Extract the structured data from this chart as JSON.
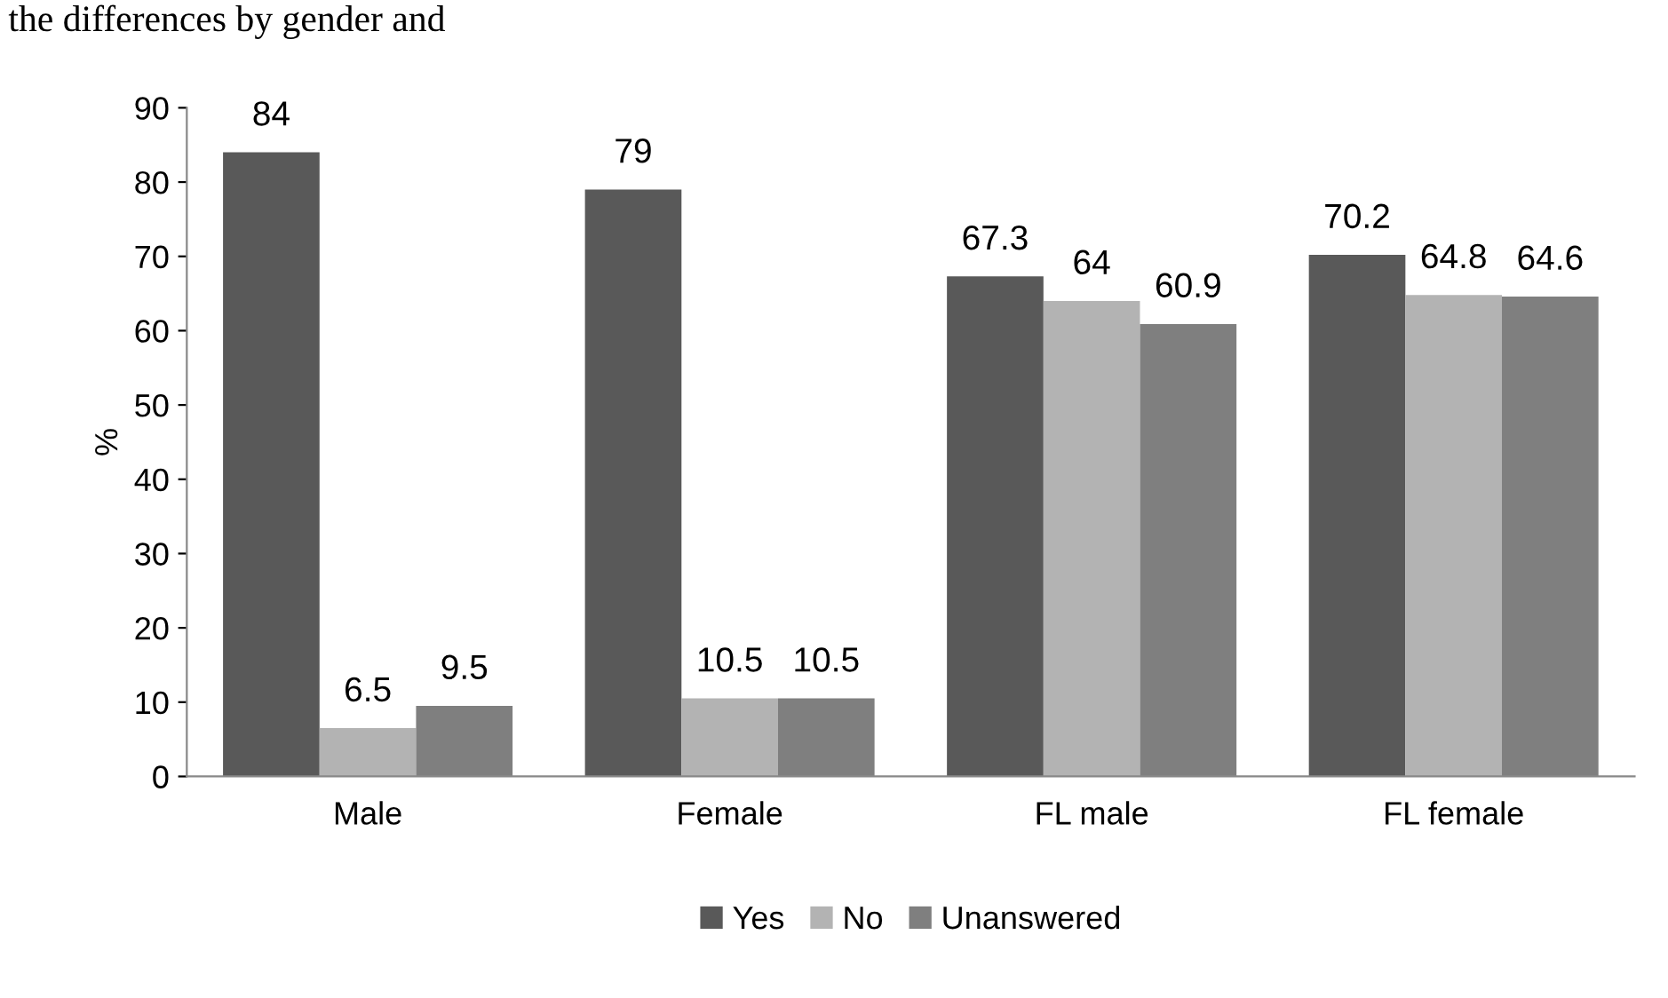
{
  "chart_data": {
    "type": "bar",
    "ylabel": "%",
    "categories": [
      "Male",
      "Female",
      "FL male",
      "FL female"
    ],
    "series": [
      {
        "name": "Yes",
        "color": "#595959",
        "values": [
          84,
          79,
          67.3,
          70.2
        ]
      },
      {
        "name": "No",
        "color": "#b3b3b3",
        "values": [
          6.5,
          10.5,
          64,
          64.8
        ]
      },
      {
        "name": "Unanswered",
        "color": "#7f7f7f",
        "values": [
          9.5,
          10.5,
          60.9,
          64.6
        ]
      }
    ],
    "ylim": [
      0,
      90
    ],
    "yticks": [
      0,
      10,
      20,
      30,
      40,
      50,
      60,
      70,
      80,
      90
    ],
    "data_labels": true,
    "grid": false,
    "legend": "bottom",
    "annotations": [
      "the differences by gender and"
    ]
  }
}
